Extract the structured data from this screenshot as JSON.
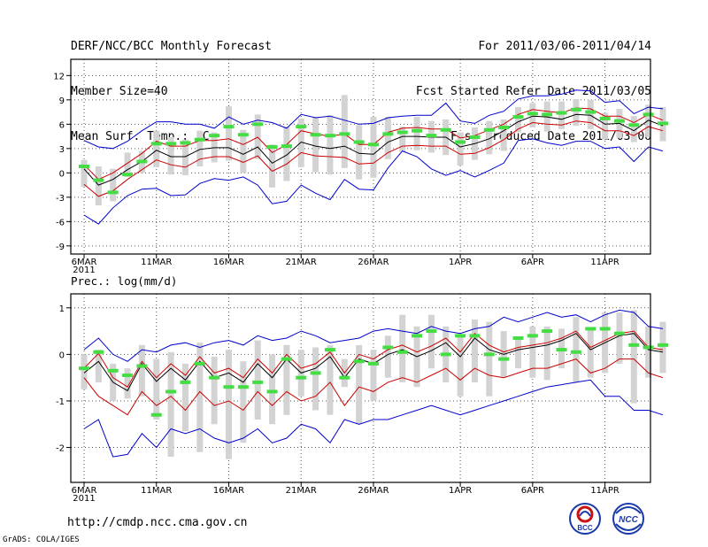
{
  "header": {
    "title": "DERF/NCC/BCC Monthly Forecast",
    "member_size": "Member Size=40",
    "variable": "Mean Surf. Temp.: °C",
    "period": "For 2011/03/06-2011/04/14",
    "started": "Fcst Started Refer Date 2011/03/05",
    "produced": "Fcst Produced Date 2011/03/06"
  },
  "footer": {
    "url": "http://cmdp.ncc.cma.gov.cn",
    "grads": "GrADS: COLA/IGES"
  },
  "logos": {
    "bcc": "BCC",
    "ncc": "NCC"
  },
  "colors": {
    "mean": "#000000",
    "spread": "#cc0000",
    "extreme": "#0000cc",
    "box": "#d3d3d3",
    "obs": "#44dd44"
  },
  "chart_data": [
    {
      "type": "line",
      "title": "Mean Surf. Temp.: °C",
      "xlabel": "",
      "ylabel": "°C",
      "ylim": [
        -10,
        14
      ],
      "yticks": [
        -9,
        -6,
        -3,
        0,
        3,
        6,
        9,
        12
      ],
      "xticks": [
        {
          "day": 0,
          "label": "6MAR",
          "sub": "2011"
        },
        {
          "day": 5,
          "label": "11MAR"
        },
        {
          "day": 10,
          "label": "16MAR"
        },
        {
          "day": 15,
          "label": "21MAR"
        },
        {
          "day": 20,
          "label": "26MAR"
        },
        {
          "day": 26,
          "label": "1APR"
        },
        {
          "day": 31,
          "label": "6APR"
        },
        {
          "day": 36,
          "label": "11APR"
        }
      ],
      "grid": true,
      "series": [
        {
          "name": "ensemble mean",
          "role": "mean",
          "values": [
            0.5,
            -1.5,
            -0.8,
            0.4,
            1.4,
            2.8,
            2,
            2,
            2.9,
            3.1,
            3.1,
            2.3,
            3.2,
            1.2,
            2.2,
            3.8,
            3.3,
            3,
            3.3,
            2.4,
            2.3,
            3.8,
            4.5,
            4.5,
            4.4,
            4.4,
            3.2,
            3.6,
            4.2,
            5.2,
            6.3,
            7,
            6.9,
            6.6,
            7.2,
            7.1,
            6,
            6.1,
            5.2,
            6.5,
            5.8
          ]
        },
        {
          "name": "upper spread",
          "role": "spread",
          "values": [
            1,
            -0.8,
            0,
            1.2,
            2.4,
            3.9,
            3.3,
            3.3,
            4,
            4,
            4.2,
            3.5,
            4.4,
            2.5,
            3.5,
            5.2,
            4.8,
            4.5,
            4.8,
            3.5,
            3.5,
            5,
            5.5,
            5.6,
            5.4,
            5.4,
            4.3,
            4.6,
            5.3,
            6,
            7.2,
            7.8,
            7.6,
            7.4,
            8,
            7.9,
            7,
            7,
            6.2,
            7.2,
            6.5
          ]
        },
        {
          "name": "lower spread",
          "role": "spread",
          "values": [
            -1.4,
            -2.9,
            -2.2,
            -0.8,
            0.4,
            1.6,
            1,
            0.7,
            1.7,
            2,
            2,
            1.3,
            2.1,
            0.2,
            1.1,
            2.5,
            2.1,
            2,
            1.9,
            1.1,
            1.2,
            2.5,
            3.3,
            3.4,
            3.3,
            3.3,
            2.3,
            2.4,
            3.1,
            4.1,
            5.4,
            6.2,
            6,
            5.9,
            6.4,
            6.2,
            5.2,
            5.2,
            4.6,
            5.7,
            5.2
          ]
        },
        {
          "name": "ensemble max",
          "role": "extreme",
          "values": [
            4,
            3.2,
            3,
            3.9,
            5.2,
            6.3,
            6.3,
            6,
            6,
            5.5,
            6.9,
            6,
            6.5,
            6.2,
            5.5,
            7.2,
            6.8,
            7,
            6.5,
            6,
            6.1,
            6.8,
            7,
            7.1,
            7.1,
            8.6,
            6.4,
            6.1,
            7.1,
            7.6,
            9.1,
            9.5,
            9.5,
            9.7,
            10.2,
            10.1,
            8.7,
            8.9,
            7.3,
            8.1,
            7.9
          ]
        },
        {
          "name": "ensemble min",
          "role": "extreme",
          "values": [
            -5.2,
            -6.3,
            -4.3,
            -2.8,
            -2,
            -1.9,
            -2.8,
            -2.7,
            -1.3,
            -0.7,
            -0.9,
            -0.5,
            -1.5,
            -3.8,
            -3.5,
            -1.5,
            -2.5,
            -3.3,
            -0.8,
            -2,
            -2.1,
            0.6,
            2.7,
            2,
            0.5,
            -0.3,
            0.3,
            -0.5,
            0.3,
            1.2,
            4,
            4.2,
            3.7,
            3.4,
            3.9,
            3.9,
            3,
            3.2,
            1.4,
            3.2,
            2.7
          ]
        }
      ],
      "boxes": {
        "low": [
          -1.7,
          -4,
          -3.5,
          -0.5,
          0,
          0.7,
          -0.2,
          -0.3,
          0.8,
          1.3,
          1.5,
          0,
          1.7,
          -1.8,
          -1,
          0.7,
          0.1,
          -0.2,
          0.6,
          -0.8,
          -0.6,
          1.7,
          2.6,
          2.8,
          2.5,
          2.2,
          0.9,
          1.6,
          2.3,
          2.7,
          5,
          5.6,
          5.1,
          5.4,
          5.8,
          5.4,
          4.1,
          4.3,
          3.8,
          4.4,
          3.9
        ],
        "high": [
          1.6,
          0.8,
          0.5,
          2.5,
          2.7,
          5.2,
          4.4,
          4.1,
          5.2,
          5,
          8.2,
          5.3,
          7.2,
          3.5,
          5.7,
          6.7,
          6.9,
          7.1,
          9.6,
          5.9,
          6.9,
          6.9,
          5.7,
          6.9,
          6.4,
          6.6,
          5,
          5.6,
          6.4,
          6.6,
          8.1,
          8.6,
          8.8,
          8.8,
          9.1,
          9,
          7.4,
          7.9,
          7,
          8.4,
          8.1
        ]
      },
      "observations": [
        0.8,
        -0.9,
        -2.4,
        -0.2,
        1.4,
        3.6,
        3.6,
        3.7,
        4.1,
        4.6,
        5.7,
        4.7,
        6,
        3.2,
        3.3,
        5.7,
        4.7,
        4.6,
        4.8,
        3.8,
        3.5,
        4.8,
        5,
        5.2,
        4.6,
        5.3,
        3.8,
        4.4,
        5.3,
        5.6,
        6.9,
        7.3,
        7.2,
        7.4,
        7.8,
        7.5,
        6.7,
        6.4,
        5.9,
        7.2,
        6.1
      ]
    },
    {
      "type": "line",
      "title": "Prec.: log(mm/d)",
      "xlabel": "",
      "ylabel": "log(mm/d)",
      "ylim": [
        -2.75,
        1.3
      ],
      "yticks": [
        -2,
        -1,
        0,
        1
      ],
      "xticks": [
        {
          "day": 0,
          "label": "6MAR",
          "sub": "2011"
        },
        {
          "day": 5,
          "label": "11MAR"
        },
        {
          "day": 10,
          "label": "16MAR"
        },
        {
          "day": 15,
          "label": "21MAR"
        },
        {
          "day": 20,
          "label": "26MAR"
        },
        {
          "day": 26,
          "label": "1APR"
        },
        {
          "day": 31,
          "label": "6APR"
        },
        {
          "day": 36,
          "label": "11APR"
        }
      ],
      "grid": true,
      "series": [
        {
          "name": "ensemble mean",
          "role": "mean",
          "values": [
            -0.4,
            -0.15,
            -0.6,
            -0.78,
            -0.2,
            -0.58,
            -0.3,
            -0.55,
            -0.15,
            -0.5,
            -0.4,
            -0.6,
            -0.2,
            -0.5,
            -0.1,
            -0.4,
            -0.3,
            -0.05,
            -0.5,
            -0.1,
            -0.2,
            0,
            0.1,
            -0.05,
            0.08,
            0.25,
            -0.05,
            0.35,
            0.1,
            0,
            0.1,
            0.15,
            0.2,
            0.3,
            0.45,
            0.1,
            0.25,
            0.4,
            0.45,
            0.1,
            0.05
          ]
        },
        {
          "name": "upper spread",
          "role": "spread",
          "values": [
            -0.3,
            0.02,
            -0.5,
            -0.7,
            -0.15,
            -0.5,
            -0.2,
            -0.45,
            -0.05,
            -0.4,
            -0.3,
            -0.5,
            -0.1,
            -0.4,
            0,
            -0.3,
            -0.2,
            0.05,
            -0.4,
            0,
            -0.1,
            0.1,
            0.2,
            0.05,
            0.18,
            0.35,
            0.05,
            0.45,
            0.2,
            0.05,
            0.15,
            0.2,
            0.25,
            0.35,
            0.5,
            0.15,
            0.3,
            0.45,
            0.5,
            0.15,
            0.1
          ]
        },
        {
          "name": "lower spread",
          "role": "spread",
          "values": [
            -0.5,
            -0.9,
            -1.1,
            -1.3,
            -0.8,
            -1.1,
            -0.9,
            -1.2,
            -0.8,
            -1.1,
            -1,
            -1.2,
            -0.8,
            -1.1,
            -0.8,
            -1,
            -0.9,
            -0.6,
            -1.1,
            -0.7,
            -0.8,
            -0.6,
            -0.5,
            -0.6,
            -0.45,
            -0.3,
            -0.55,
            -0.3,
            -0.45,
            -0.5,
            -0.4,
            -0.3,
            -0.3,
            -0.2,
            -0.1,
            -0.4,
            -0.3,
            -0.1,
            -0.1,
            -0.4,
            -0.5
          ]
        },
        {
          "name": "ensemble max",
          "role": "extreme",
          "values": [
            0.1,
            0.35,
            0,
            -0.15,
            0.1,
            0.05,
            0.2,
            0.25,
            0.15,
            0.25,
            0.3,
            0.2,
            0.4,
            0.3,
            0.35,
            0.5,
            0.4,
            0.25,
            0.3,
            0.35,
            0.5,
            0.55,
            0.5,
            0.45,
            0.6,
            0.5,
            0.45,
            0.55,
            0.6,
            0.8,
            0.7,
            0.8,
            0.9,
            0.8,
            0.85,
            0.7,
            0.85,
            0.95,
            0.9,
            0.6,
            0.55
          ]
        },
        {
          "name": "ensemble min",
          "role": "extreme",
          "values": [
            -1.6,
            -1.4,
            -2.2,
            -2.15,
            -1.7,
            -2,
            -1.6,
            -1.7,
            -1.6,
            -1.8,
            -1.9,
            -1.8,
            -1.6,
            -1.9,
            -1.8,
            -1.5,
            -1.6,
            -1.9,
            -1.4,
            -1.5,
            -1.4,
            -1.4,
            -1.3,
            -1.2,
            -1.1,
            -1.2,
            -1.3,
            -1.2,
            -1.1,
            -1,
            -0.9,
            -0.8,
            -0.7,
            -0.65,
            -0.6,
            -0.55,
            -0.9,
            -0.9,
            -1.2,
            -1.2,
            -1.3
          ]
        }
      ],
      "boxes": {
        "low": [
          -0.75,
          -0.6,
          -1,
          -0.95,
          -0.9,
          -1.4,
          -2.2,
          -1.65,
          -2.1,
          -1.5,
          -2.25,
          -1.9,
          -1.4,
          -1.5,
          -1.3,
          -0.9,
          -1.2,
          -1.3,
          -0.7,
          -1.5,
          -1,
          -0.5,
          -0.6,
          -0.7,
          -0.3,
          -0.6,
          -0.9,
          -0.6,
          -0.9,
          -0.5,
          -0.3,
          -0.5,
          -0.55,
          -0.3,
          -0.6,
          -0.5,
          -0.4,
          -0.2,
          -1.05,
          -0.5,
          -0.4
        ]
      },
      "boxes_high": [
        0,
        0.1,
        -0.2,
        -0.3,
        0.2,
        -0.1,
        0.05,
        -0.2,
        0.25,
        -0.05,
        0.1,
        -0.15,
        0.3,
        0,
        0.2,
        0.1,
        0.15,
        0.2,
        -0.1,
        0.2,
        0.1,
        0.4,
        0.85,
        0.6,
        0.85,
        0.6,
        0.4,
        0.75,
        0.7,
        0.5,
        0.35,
        0.6,
        0.6,
        0.55,
        0.8,
        0.55,
        0.9,
        0.9,
        0.95,
        0.6,
        0.7
      ],
      "observations": [
        -0.3,
        0.05,
        -0.35,
        -0.45,
        -0.25,
        -1.3,
        -0.8,
        -0.6,
        -0.2,
        -0.5,
        -0.7,
        -0.7,
        -0.6,
        -0.8,
        -0.1,
        -0.5,
        -0.4,
        0.1,
        -0.5,
        -0.15,
        -0.2,
        0.15,
        0.05,
        0.4,
        0.5,
        0,
        0.4,
        0.4,
        0,
        -0.1,
        0.35,
        0.4,
        0.5,
        0.1,
        0.05,
        0.55,
        0.55,
        0.45,
        0.2,
        0.15,
        0.2
      ]
    }
  ]
}
